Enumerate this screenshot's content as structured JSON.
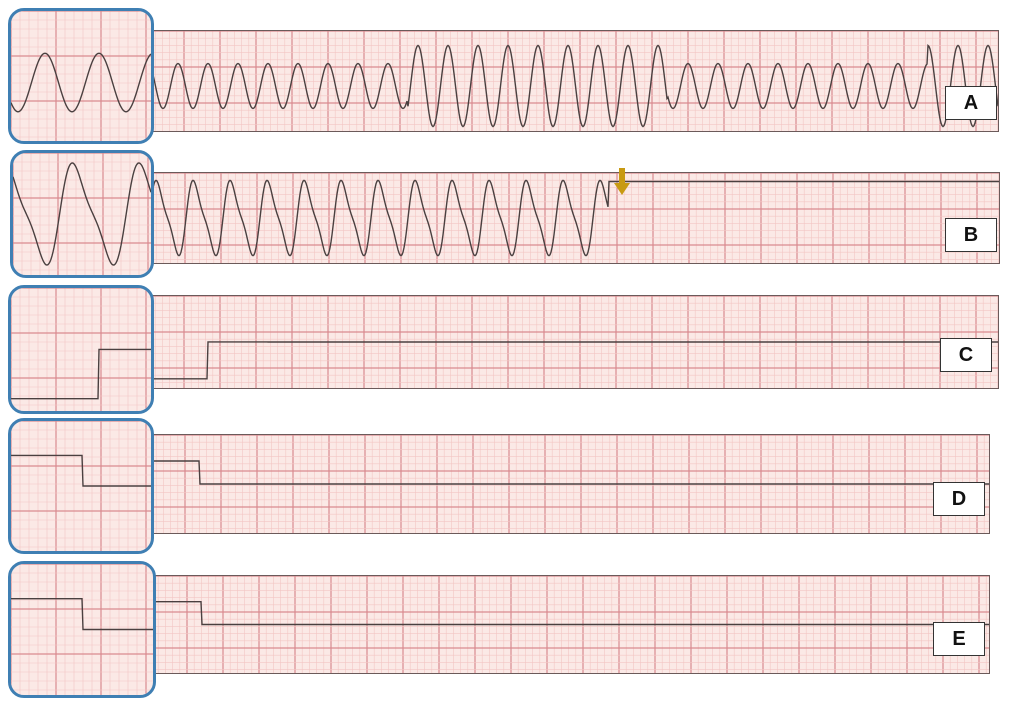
{
  "panels": [
    {
      "label": "A",
      "rhythm": "wide-irregular"
    },
    {
      "label": "B",
      "rhythm": "wide-regular-then-pause",
      "marker": "arrow-down-icon"
    },
    {
      "label": "C",
      "rhythm": "narrow-negative"
    },
    {
      "label": "D",
      "rhythm": "narrow-biphasic"
    },
    {
      "label": "E",
      "rhythm": "narrow-biphasic"
    }
  ],
  "colors": {
    "grid_minor": "#f3c6c4",
    "grid_major": "#d98a8f",
    "paper": "#fbe9e6",
    "trace": "#4a4040",
    "inset_border": "#3f7fb3",
    "arrow": "#c89a12"
  }
}
